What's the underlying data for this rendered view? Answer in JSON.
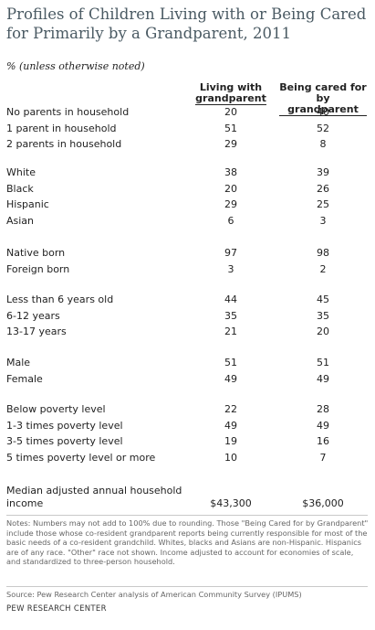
{
  "title": "Profiles of Children Living with or Being Cared for Primarily by a Grandparent, 2011",
  "subtitle": "% (unless otherwise noted)",
  "columns": [
    {
      "line1": "Living with",
      "line2": "grandparent"
    },
    {
      "line1": "Being cared for",
      "line2": "by grandparent"
    }
  ],
  "groups": [
    [
      {
        "label": "No parents in household",
        "living": "20",
        "cared": "40"
      },
      {
        "label": "1 parent in household",
        "living": "51",
        "cared": "52"
      },
      {
        "label": "2 parents in household",
        "living": "29",
        "cared": "8"
      }
    ],
    [
      {
        "label": "White",
        "living": "38",
        "cared": "39"
      },
      {
        "label": "Black",
        "living": "20",
        "cared": "26"
      },
      {
        "label": "Hispanic",
        "living": "29",
        "cared": "25"
      },
      {
        "label": "Asian",
        "living": "6",
        "cared": "3"
      }
    ],
    [
      {
        "label": "Native born",
        "living": "97",
        "cared": "98"
      },
      {
        "label": "Foreign born",
        "living": "3",
        "cared": "2"
      }
    ],
    [
      {
        "label": "Less than 6 years old",
        "living": "44",
        "cared": "45"
      },
      {
        "label": "6-12 years",
        "living": "35",
        "cared": "35"
      },
      {
        "label": "13-17 years",
        "living": "21",
        "cared": "20"
      }
    ],
    [
      {
        "label": "Male",
        "living": "51",
        "cared": "51"
      },
      {
        "label": "Female",
        "living": "49",
        "cared": "49"
      }
    ],
    [
      {
        "label": "Below poverty level",
        "living": "22",
        "cared": "28"
      },
      {
        "label": "1-3 times poverty level",
        "living": "49",
        "cared": "49"
      },
      {
        "label": "3-5 times poverty level",
        "living": "19",
        "cared": "16"
      },
      {
        "label": "5 times poverty level or more",
        "living": "10",
        "cared": "7"
      }
    ]
  ],
  "median": {
    "label_line1": "Median adjusted annual household",
    "label_line2": "income",
    "living": "$43,300",
    "cared": "$36,000"
  },
  "notes": "Notes: Numbers may not add to 100% due to rounding. Those \"Being Cared for by Grandparent\" include those whose co-resident grandparent reports being currently responsible for most of the basic needs of a co-resident grandchild. Whites, blacks and Asians are non-Hispanic. Hispanics are of any race. \"Other\" race not shown. Income adjusted to account for economies of scale, and standardized to three-person household.",
  "source": "Source: Pew Research Center analysis of American Community Survey (IPUMS)",
  "organization": "PEW RESEARCH CENTER"
}
